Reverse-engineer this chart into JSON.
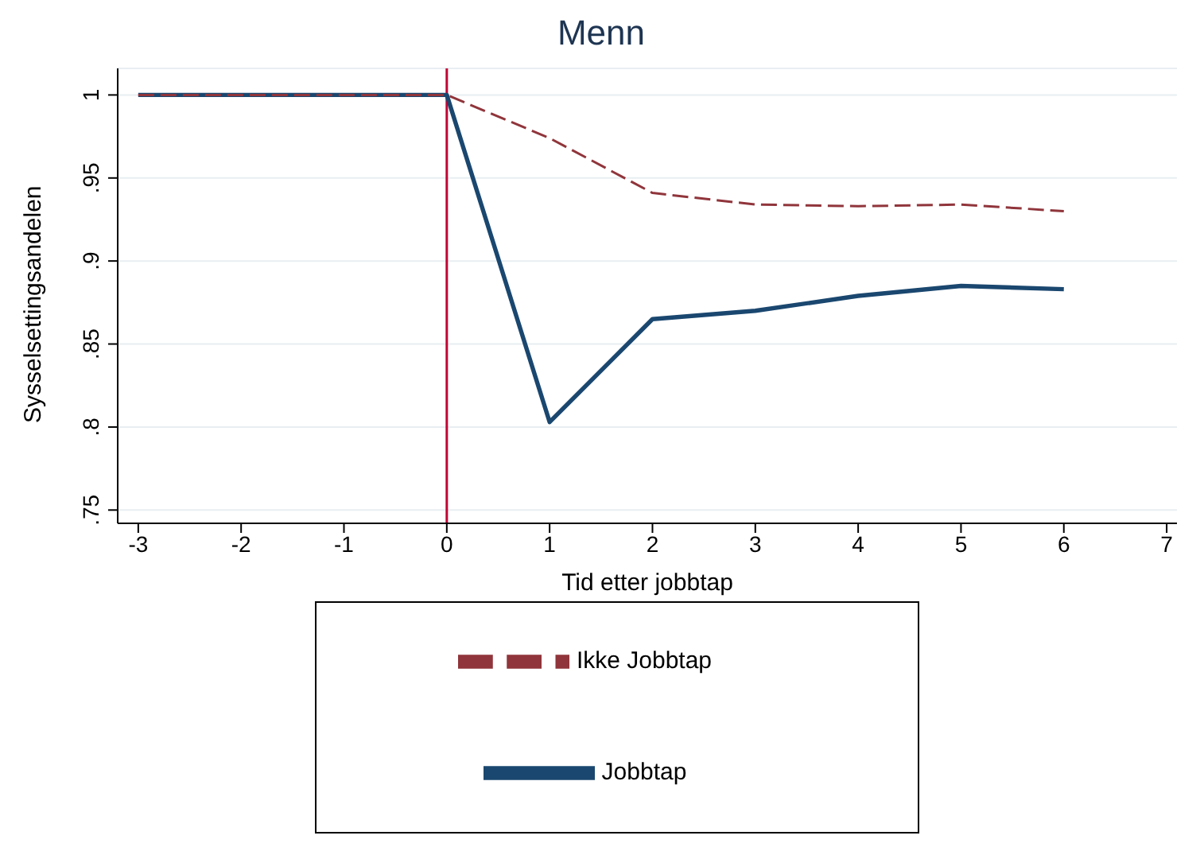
{
  "chart_data": {
    "type": "line",
    "title": "Menn",
    "xlabel": "Tid etter jobbtap",
    "ylabel": "Sysselsettingsandelen",
    "x": [
      -3,
      -2,
      -1,
      0,
      1,
      2,
      3,
      4,
      5,
      6
    ],
    "series": [
      {
        "name": "Jobbtap",
        "color": "#1a476f",
        "line_style": "solid",
        "values": [
          1,
          1,
          1,
          1,
          0.803,
          0.865,
          0.87,
          0.879,
          0.885,
          0.883
        ]
      },
      {
        "name": "Ikke Jobbtap",
        "color": "#90353b",
        "line_style": "dashed",
        "values": [
          1,
          1,
          1,
          1,
          0.974,
          0.941,
          0.934,
          0.933,
          0.934,
          0.93
        ]
      }
    ],
    "xlim": [
      -3.2,
      7.1
    ],
    "xticks": [
      -3,
      -2,
      -1,
      0,
      1,
      2,
      3,
      4,
      5,
      6,
      7
    ],
    "ylim": [
      0.742,
      1.016
    ],
    "yticks": [
      {
        "value": 0.75,
        "label": ".75"
      },
      {
        "value": 0.8,
        "label": ".8"
      },
      {
        "value": 0.85,
        "label": ".85"
      },
      {
        "value": 0.9,
        "label": ".9"
      },
      {
        "value": 0.95,
        "label": ".95"
      },
      {
        "value": 1,
        "label": "1"
      }
    ],
    "ref_lines": [
      {
        "axis": "x",
        "value": 0,
        "label": null,
        "color": "#c10534",
        "line_style": "solid"
      }
    ],
    "grid": "y",
    "legend": "bottom",
    "marker": "none"
  }
}
